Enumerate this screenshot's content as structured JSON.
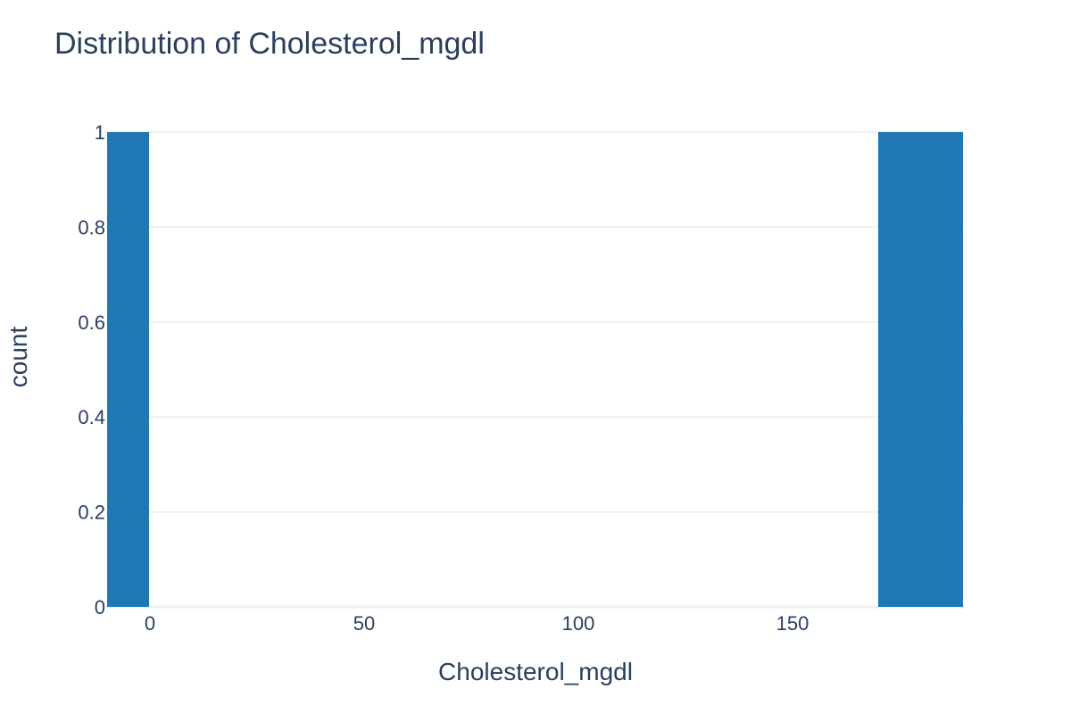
{
  "chart_data": {
    "type": "bar",
    "title": "Distribution of Cholesterol_mgdl",
    "xlabel": "Cholesterol_mgdl",
    "ylabel": "count",
    "bins": [
      {
        "start": -10,
        "end": 0,
        "count": 1
      },
      {
        "start": 170,
        "end": 190,
        "count": 1
      }
    ],
    "xlim": [
      -10,
      190
    ],
    "ylim": [
      0,
      1
    ],
    "x_ticks": [
      0,
      50,
      100,
      150
    ],
    "y_ticks": [
      0,
      0.2,
      0.4,
      0.6,
      0.8,
      1
    ],
    "grid": true,
    "legend": "none",
    "bar_color": "#1f77b4",
    "text_color": "#2a3f5f",
    "grid_color": "#ebf0f8"
  }
}
